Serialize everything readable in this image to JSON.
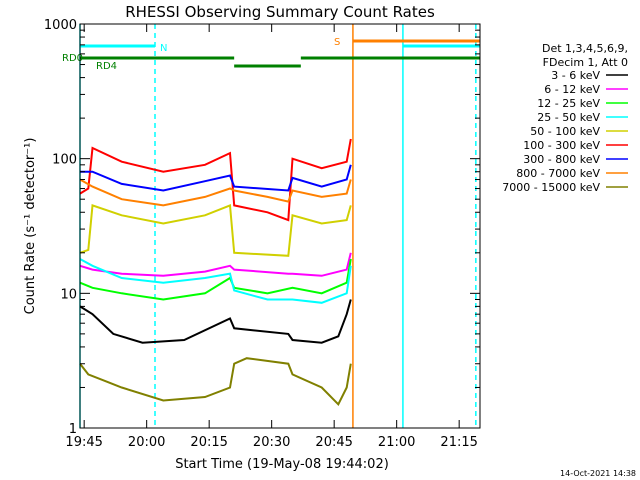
{
  "chart_data": {
    "type": "line",
    "title": "RHESSI Observing Summary Count Rates",
    "xlabel": "Start Time (19-May-08 19:44:02)",
    "ylabel": "Count Rate (s⁻¹ detector⁻¹)",
    "ylog": true,
    "ylim": [
      1,
      1000
    ],
    "xlim_min": [
      0,
      96
    ],
    "x_tick_labels": [
      "19:45",
      "20:00",
      "20:15",
      "20:30",
      "20:45",
      "21:00",
      "21:15"
    ],
    "x_tick_min": [
      1,
      16,
      31,
      46,
      61,
      76,
      91
    ],
    "y_tick_labels": [
      "1",
      "10",
      "100",
      "1000"
    ],
    "y_tick_values": [
      1,
      10,
      100,
      1000
    ],
    "grid": false,
    "legend_position": "right",
    "legend_header": [
      "Det 1,3,4,5,6,9,",
      "FDecim 1, Att 0"
    ],
    "timestamp": "14-Oct-2021 14:38",
    "series": [
      {
        "name": "3 - 6 keV",
        "color": "#000000",
        "x": [
          0,
          3,
          8,
          15,
          25,
          36,
          37,
          50,
          51,
          58,
          62,
          64,
          65
        ],
        "y": [
          8,
          7,
          5,
          4.3,
          4.5,
          6.5,
          5.5,
          5,
          4.5,
          4.3,
          4.8,
          7,
          9
        ]
      },
      {
        "name": "6 - 12 keV",
        "color": "#ff00ff",
        "x": [
          0,
          3,
          10,
          20,
          30,
          36,
          37,
          50,
          51,
          58,
          64,
          65
        ],
        "y": [
          16,
          15,
          14,
          13.5,
          14.5,
          16,
          15,
          14,
          14,
          13.5,
          15,
          20
        ]
      },
      {
        "name": "12 - 25 keV",
        "color": "#00ff00",
        "x": [
          0,
          3,
          10,
          20,
          30,
          36,
          37,
          45,
          51,
          58,
          64,
          65
        ],
        "y": [
          12,
          11,
          10,
          9,
          10,
          13,
          11,
          10,
          11,
          10,
          12,
          18
        ]
      },
      {
        "name": "25 - 50 keV",
        "color": "#00ffff",
        "x": [
          0,
          3,
          10,
          20,
          30,
          36,
          37,
          45,
          51,
          58,
          64,
          65
        ],
        "y": [
          18,
          16,
          13,
          12,
          13,
          14,
          10.5,
          9,
          9,
          8.5,
          10,
          16
        ]
      },
      {
        "name": "50 - 100 keV",
        "color": "#d0d000",
        "x": [
          0,
          2,
          3,
          10,
          20,
          30,
          36,
          37,
          50,
          51,
          58,
          64,
          65
        ],
        "y": [
          20,
          21,
          45,
          38,
          33,
          38,
          45,
          20,
          19,
          38,
          33,
          35,
          45
        ]
      },
      {
        "name": "100 - 300 keV",
        "color": "#ff0000",
        "x": [
          0,
          2,
          3,
          10,
          20,
          30,
          36,
          37,
          45,
          50,
          51,
          58,
          64,
          65
        ],
        "y": [
          55,
          60,
          120,
          95,
          80,
          90,
          110,
          45,
          40,
          35,
          100,
          85,
          95,
          140
        ]
      },
      {
        "name": "300 - 800 keV",
        "color": "#0000ff",
        "x": [
          0,
          3,
          10,
          20,
          30,
          36,
          37,
          50,
          51,
          58,
          64,
          65
        ],
        "y": [
          80,
          80,
          65,
          58,
          68,
          75,
          62,
          58,
          72,
          62,
          70,
          90
        ]
      },
      {
        "name": "800 - 7000 keV",
        "color": "#ff8000",
        "x": [
          0,
          3,
          10,
          20,
          30,
          36,
          37,
          45,
          50,
          51,
          58,
          64,
          65
        ],
        "y": [
          70,
          62,
          50,
          45,
          52,
          60,
          58,
          52,
          48,
          58,
          52,
          55,
          70
        ]
      },
      {
        "name": "7000 - 15000 keV",
        "color": "#808000",
        "x": [
          0,
          2,
          10,
          20,
          30,
          36,
          37,
          40,
          50,
          51,
          58,
          62,
          64,
          65
        ],
        "y": [
          3,
          2.5,
          2,
          1.6,
          1.7,
          2,
          3,
          3.3,
          3,
          2.5,
          2,
          1.5,
          2,
          3
        ]
      }
    ],
    "flag_bars": [
      {
        "label": "",
        "color": "#00ffff",
        "x_min": [
          0,
          18
        ]
      },
      {
        "label": "N",
        "color": "#00ffff",
        "x_min": []
      },
      {
        "label": "S",
        "color": "#ff8000",
        "x_min": [
          65.5,
          96
        ]
      },
      {
        "label": "",
        "color": "#00ffff",
        "x_min": [
          77.5,
          96
        ]
      },
      {
        "label": "RD0",
        "color": "#008000",
        "x_min": [
          0,
          37,
          53,
          96
        ]
      },
      {
        "label": "RD4",
        "color": "#008000",
        "x_min": [
          37,
          53
        ]
      }
    ],
    "vertical_lines": [
      {
        "x_min": 0,
        "color": "#00ffff",
        "style": "solid"
      },
      {
        "x_min": 18,
        "color": "#00ffff",
        "style": "dashed"
      },
      {
        "x_min": 65.5,
        "color": "#ff8000",
        "style": "solid"
      },
      {
        "x_min": 77.5,
        "color": "#00ffff",
        "style": "solid"
      },
      {
        "x_min": 95,
        "color": "#00ffff",
        "style": "dashed"
      }
    ]
  }
}
